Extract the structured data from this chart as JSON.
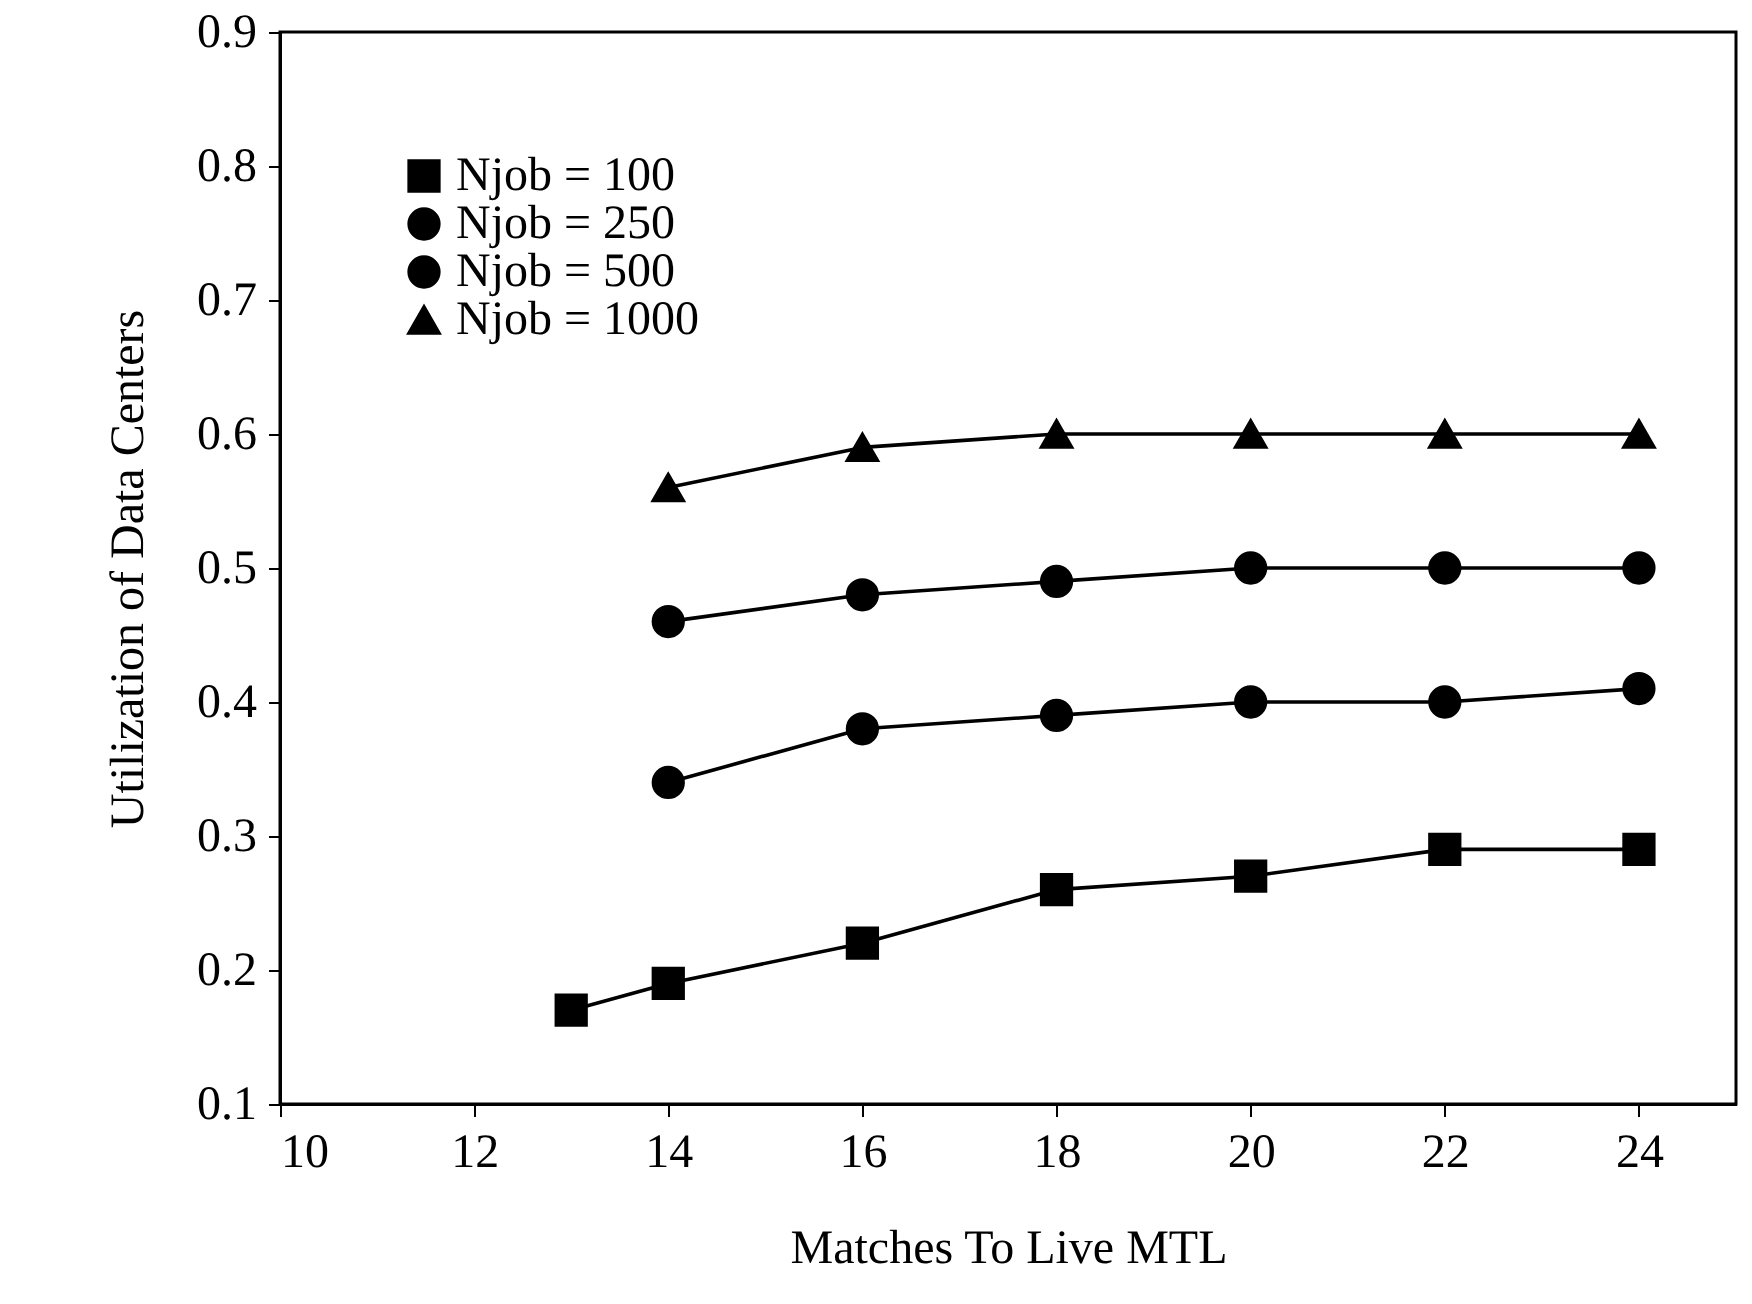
{
  "chart_data": {
    "type": "line",
    "xlabel": "Matches To Live MTL",
    "ylabel": "Utilization of Data Centers",
    "xlim": [
      10,
      25
    ],
    "xticks": [
      10,
      12,
      14,
      16,
      18,
      20,
      22,
      24
    ],
    "ylim": [
      0.1,
      0.9
    ],
    "yticks": [
      0.1,
      0.2,
      0.3,
      0.4,
      0.5,
      0.6,
      0.7,
      0.8,
      0.9
    ],
    "grid": false,
    "legend": "top left",
    "line_style": "solid",
    "series": [
      {
        "name": "Njob = 100",
        "color": "#000000",
        "marker": "square",
        "x": [
          13,
          14,
          16,
          18,
          20,
          22,
          24
        ],
        "values": [
          0.17,
          0.19,
          0.22,
          0.26,
          0.27,
          0.29,
          0.29
        ]
      },
      {
        "name": "Njob = 250",
        "color": "#000000",
        "marker": "circle",
        "x": [
          14,
          16,
          18,
          20,
          22,
          24
        ],
        "values": [
          0.34,
          0.38,
          0.39,
          0.4,
          0.4,
          0.41
        ]
      },
      {
        "name": "Njob = 500",
        "color": "#000000",
        "marker": "circle",
        "x": [
          14,
          16,
          18,
          20,
          22,
          24
        ],
        "values": [
          0.46,
          0.48,
          0.49,
          0.5,
          0.5,
          0.5
        ]
      },
      {
        "name": "Njob = 1000",
        "color": "#000000",
        "marker": "triangle",
        "x": [
          14,
          16,
          18,
          20,
          22,
          24
        ],
        "values": [
          0.56,
          0.59,
          0.6,
          0.6,
          0.6,
          0.6
        ]
      }
    ]
  }
}
